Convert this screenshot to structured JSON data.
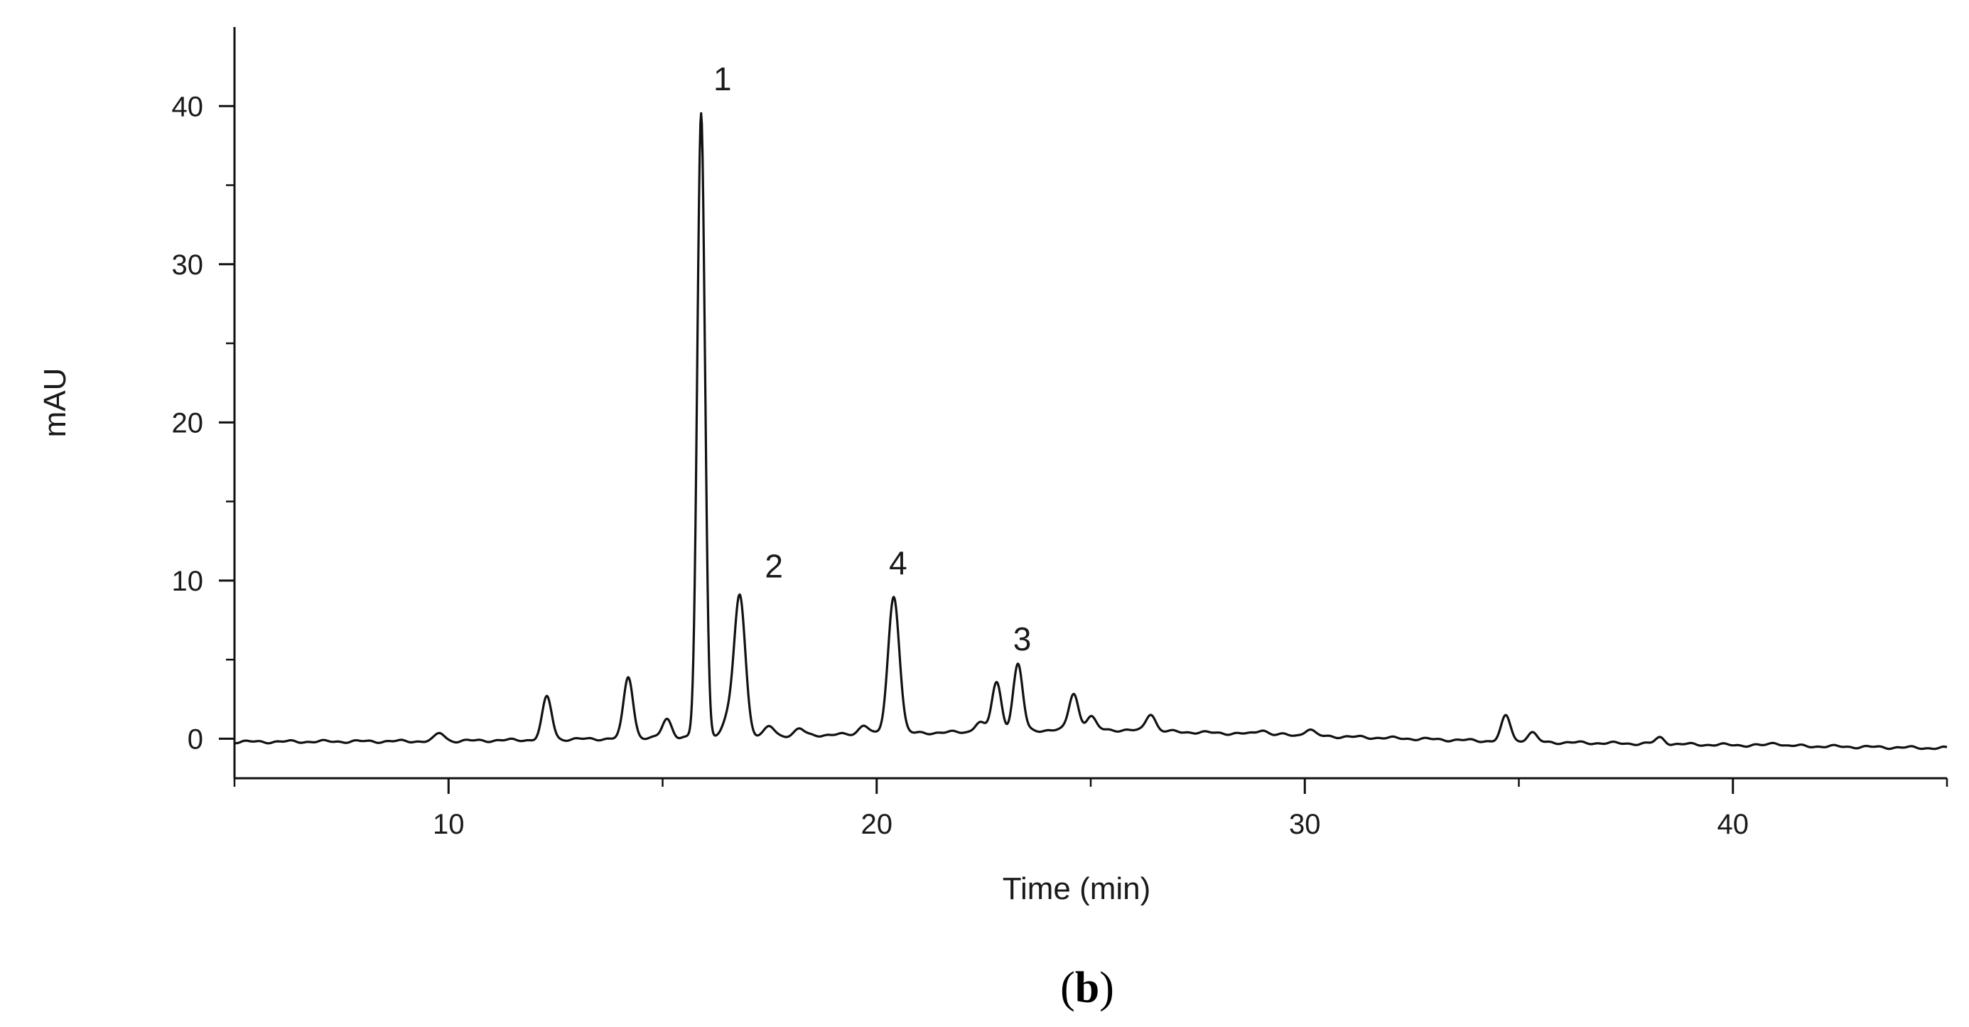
{
  "chart_data": {
    "type": "line",
    "xlabel": "Time (min)",
    "ylabel": "mAU",
    "xlim": [
      5,
      45
    ],
    "ylim": [
      -2.5,
      45
    ],
    "x_ticks": [
      10,
      20,
      30,
      40
    ],
    "y_ticks": [
      0,
      10,
      20,
      30,
      40
    ],
    "grid": false,
    "legend": "none",
    "line_color": "#111111",
    "series": [
      {
        "baseline": {
          "x": [
            5,
            10,
            15,
            20,
            25,
            30,
            35,
            40,
            45
          ],
          "y": [
            -0.2,
            -0.15,
            0.05,
            0.3,
            0.6,
            0.2,
            -0.2,
            -0.4,
            -0.6
          ]
        },
        "peaks": [
          {
            "x": 9.8,
            "height": 0.5
          },
          {
            "x": 12.3,
            "height": 2.7
          },
          {
            "x": 14.2,
            "height": 3.9
          },
          {
            "x": 15.1,
            "height": 1.2
          },
          {
            "x": 15.9,
            "height": 39.4
          },
          {
            "x": 16.5,
            "height": 1.0
          },
          {
            "x": 16.8,
            "height": 9.0
          },
          {
            "x": 17.5,
            "height": 0.6
          },
          {
            "x": 18.2,
            "height": 0.4
          },
          {
            "x": 19.7,
            "height": 0.6
          },
          {
            "x": 20.4,
            "height": 8.7
          },
          {
            "x": 22.4,
            "height": 0.6
          },
          {
            "x": 22.8,
            "height": 3.1
          },
          {
            "x": 23.3,
            "height": 4.2
          },
          {
            "x": 24.6,
            "height": 2.3
          },
          {
            "x": 25.0,
            "height": 0.8
          },
          {
            "x": 26.4,
            "height": 1.1
          },
          {
            "x": 29.0,
            "height": 0.3
          },
          {
            "x": 30.1,
            "height": 0.4
          },
          {
            "x": 34.7,
            "height": 1.6
          },
          {
            "x": 35.3,
            "height": 0.6
          },
          {
            "x": 38.3,
            "height": 0.4
          },
          {
            "x": 41.0,
            "height": 0.2
          }
        ]
      }
    ],
    "annotations": [
      {
        "text": "1",
        "x": 16.4,
        "y": 41.0
      },
      {
        "text": "2",
        "x": 17.6,
        "y": 10.2
      },
      {
        "text": "4",
        "x": 20.5,
        "y": 10.4
      },
      {
        "text": "3",
        "x": 23.4,
        "y": 5.6
      }
    ]
  },
  "panel_label": {
    "open": "(",
    "letter": "b",
    "close": ")"
  }
}
